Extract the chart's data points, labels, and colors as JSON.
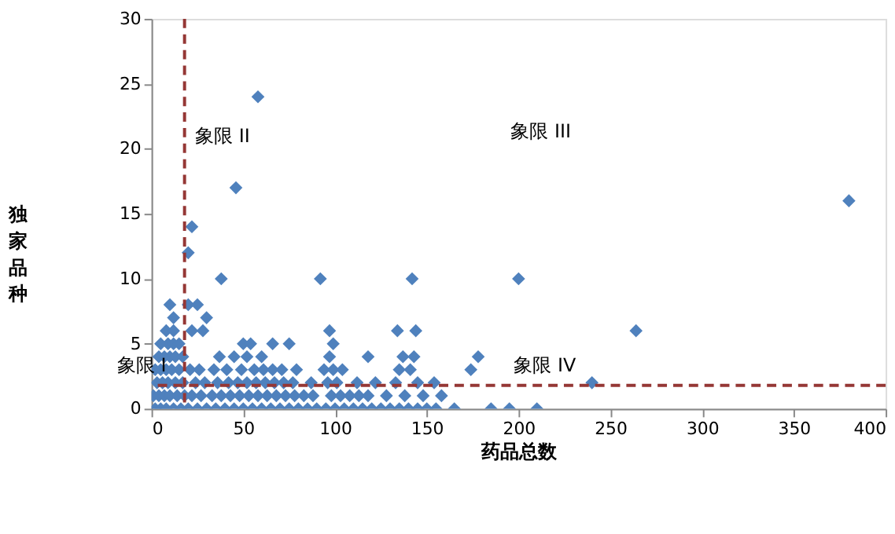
{
  "chart_data": {
    "type": "scatter",
    "xlabel": "药品总数",
    "ylabel": "独家品种",
    "xlim": [
      0,
      400
    ],
    "xticks": [
      0,
      50,
      100,
      150,
      200,
      250,
      300,
      350,
      400
    ],
    "ylim": [
      0,
      30
    ],
    "yticks": [
      0,
      5,
      10,
      15,
      20,
      25,
      30
    ],
    "grid": false,
    "marker": "diamond",
    "series": [
      {
        "color": "#4f81bd",
        "x": [
          2,
          5,
          8,
          12,
          16,
          20,
          25,
          30,
          35,
          40,
          45,
          50,
          55,
          60,
          65,
          70,
          75,
          80,
          85,
          90,
          95,
          100,
          105,
          110,
          115,
          120,
          125,
          130,
          135,
          140,
          145,
          150,
          155,
          165,
          185,
          195,
          210,
          1,
          4,
          7,
          10,
          14,
          18,
          22,
          27,
          33,
          38,
          43,
          48,
          53,
          58,
          63,
          68,
          73,
          78,
          83,
          88,
          98,
          103,
          108,
          113,
          118,
          128,
          138,
          148,
          158,
          3,
          6,
          9,
          13,
          17,
          24,
          29,
          36,
          42,
          47,
          52,
          57,
          62,
          67,
          72,
          77,
          87,
          96,
          101,
          112,
          122,
          133,
          145,
          154,
          240,
          2,
          5,
          8,
          11,
          15,
          21,
          26,
          34,
          41,
          49,
          56,
          61,
          66,
          71,
          79,
          94,
          99,
          104,
          135,
          141,
          174,
          4,
          7,
          10,
          13,
          17,
          37,
          45,
          52,
          60,
          97,
          118,
          137,
          143,
          178,
          5,
          9,
          12,
          15,
          50,
          54,
          66,
          75,
          99,
          8,
          12,
          22,
          28,
          97,
          134,
          144,
          264,
          12,
          30,
          10,
          20,
          25,
          38,
          92,
          142,
          200,
          20,
          22,
          380,
          46,
          58
        ],
        "values": [
          0,
          0,
          0,
          0,
          0,
          0,
          0,
          0,
          0,
          0,
          0,
          0,
          0,
          0,
          0,
          0,
          0,
          0,
          0,
          0,
          0,
          0,
          0,
          0,
          0,
          0,
          0,
          0,
          0,
          0,
          0,
          0,
          0,
          0,
          0,
          0,
          0,
          1,
          1,
          1,
          1,
          1,
          1,
          1,
          1,
          1,
          1,
          1,
          1,
          1,
          1,
          1,
          1,
          1,
          1,
          1,
          1,
          1,
          1,
          1,
          1,
          1,
          1,
          1,
          1,
          1,
          2,
          2,
          2,
          2,
          2,
          2,
          2,
          2,
          2,
          2,
          2,
          2,
          2,
          2,
          2,
          2,
          2,
          2,
          2,
          2,
          2,
          2,
          2,
          2,
          2,
          3,
          3,
          3,
          3,
          3,
          3,
          3,
          3,
          3,
          3,
          3,
          3,
          3,
          3,
          3,
          3,
          3,
          3,
          3,
          3,
          3,
          4,
          4,
          4,
          4,
          4,
          4,
          4,
          4,
          4,
          4,
          4,
          4,
          4,
          4,
          5,
          5,
          5,
          5,
          5,
          5,
          5,
          5,
          5,
          6,
          6,
          6,
          6,
          6,
          6,
          6,
          6,
          7,
          7,
          8,
          8,
          8,
          10,
          10,
          10,
          10,
          12,
          14,
          16,
          17,
          24
        ]
      }
    ],
    "ref_lines": [
      {
        "axis": "x",
        "value": 18,
        "color": "#953735",
        "line_style": "dashed"
      },
      {
        "axis": "y",
        "value": 1.8,
        "color": "#953735",
        "line_style": "dashed"
      }
    ],
    "annotations": [
      "象限 II",
      "象限 III",
      "象限 I",
      "象限 IV"
    ]
  }
}
